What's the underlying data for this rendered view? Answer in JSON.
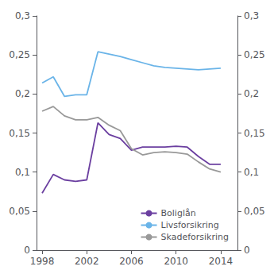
{
  "chart_data": {
    "type": "line",
    "x": [
      1998,
      1999,
      2000,
      2001,
      2002,
      2003,
      2004,
      2005,
      2006,
      2007,
      2008,
      2009,
      2010,
      2011,
      2012,
      2013,
      2014
    ],
    "series": [
      {
        "name": "Boliglån",
        "color": "#6b3fa0",
        "values": [
          0.073,
          0.097,
          0.09,
          0.088,
          0.09,
          0.163,
          0.148,
          0.143,
          0.128,
          0.132,
          0.132,
          0.132,
          0.133,
          0.132,
          0.12,
          0.11,
          0.11
        ]
      },
      {
        "name": "Livsforsikring",
        "color": "#6ab4e8",
        "values": [
          0.214,
          0.222,
          0.197,
          0.199,
          0.199,
          0.254,
          0.251,
          0.248,
          0.244,
          0.24,
          0.236,
          0.234,
          0.233,
          0.232,
          0.231,
          0.232,
          0.233
        ]
      },
      {
        "name": "Skadeforsikring",
        "color": "#999999",
        "values": [
          0.178,
          0.184,
          0.172,
          0.167,
          0.167,
          0.17,
          0.16,
          0.153,
          0.13,
          0.122,
          0.125,
          0.126,
          0.125,
          0.123,
          0.113,
          0.104,
          0.1
        ]
      }
    ],
    "xlim": [
      1997.5,
      2015.5
    ],
    "xticks": [
      1998,
      2002,
      2006,
      2010,
      2014
    ],
    "ylim": [
      0,
      0.3
    ],
    "yticks": [
      0,
      {
        "value": 0.05,
        "label": "0,05"
      },
      {
        "value": 0.1,
        "label": "0,1"
      },
      {
        "value": 0.15,
        "label": "0,15"
      },
      {
        "value": 0.2,
        "label": "0,2"
      },
      {
        "value": 0.25,
        "label": "0,25"
      },
      {
        "value": 0.3,
        "label": "0,3"
      }
    ],
    "y2lim": [
      0,
      0.3
    ],
    "y2ticks": [
      0,
      {
        "value": 0.05,
        "label": "0,05"
      },
      {
        "value": 0.1,
        "label": "0,1"
      },
      {
        "value": 0.15,
        "label": "0,15"
      },
      {
        "value": 0.2,
        "label": "0,2"
      },
      {
        "value": 0.25,
        "label": "0,25"
      },
      {
        "value": 0.3,
        "label": "0,3"
      }
    ],
    "legend": "lower right",
    "grid": false
  }
}
